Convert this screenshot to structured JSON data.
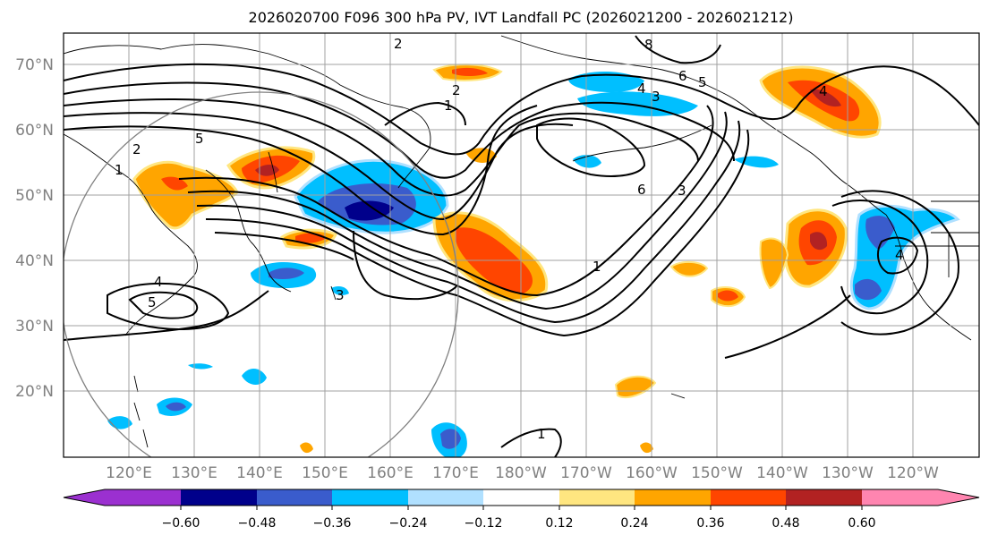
{
  "title": "2026020700 F096 300 hPa PV, IVT Landfall PC (2026021200 - 2026021212)",
  "map": {
    "lat_labels": [
      "70°N",
      "60°N",
      "50°N",
      "40°N",
      "30°N",
      "20°N"
    ],
    "lon_labels": [
      "120°E",
      "130°E",
      "140°E",
      "150°E",
      "160°E",
      "170°E",
      "180°W",
      "170°W",
      "160°W",
      "150°W",
      "140°W",
      "130°W",
      "120°W"
    ],
    "contour_labels": [
      "2",
      "2",
      "1",
      "6",
      "8",
      "5",
      "4",
      "3",
      "6",
      "3",
      "1",
      "4",
      "5",
      "1",
      "1",
      "4",
      "4",
      "5",
      "3",
      "2"
    ]
  },
  "colorbar": {
    "ticks": [
      "−0.60",
      "−0.48",
      "−0.36",
      "−0.24",
      "−0.12",
      "0.12",
      "0.24",
      "0.36",
      "0.48",
      "0.60"
    ],
    "colors": [
      "#9b30d0",
      "#00008b",
      "#3a5ccc",
      "#00bfff",
      "#b0e0ff",
      "#ffffff",
      "#ffe680",
      "#ffa500",
      "#ff4500",
      "#b22222",
      "#ff85b0"
    ]
  },
  "colors": {
    "contour": "#000000",
    "grid": "#a0a0a0",
    "tick_label": "#808080",
    "circle": "#808080"
  }
}
